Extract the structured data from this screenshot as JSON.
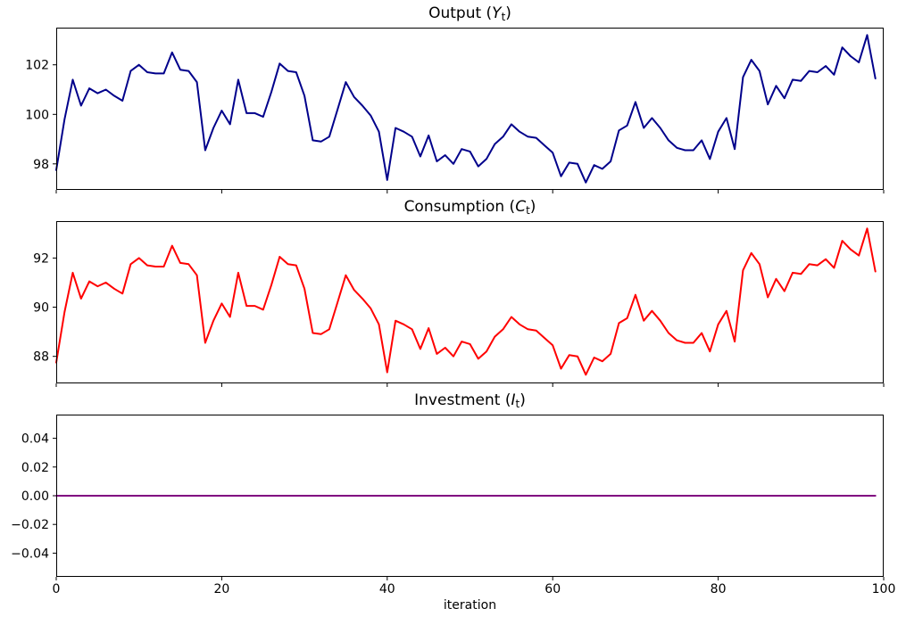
{
  "figure": {
    "background": "#ffffff",
    "text_color": "#000000",
    "xlabel": "iteration"
  },
  "chart_data": [
    {
      "name": "output",
      "type": "line",
      "title": {
        "prefix": "Output (",
        "var": "Y",
        "sub": "t",
        "suffix": ")"
      },
      "color": "#00008b",
      "line_width": 2,
      "x_start": 0,
      "x_step": 1,
      "xlim": [
        0,
        100
      ],
      "ylim": [
        96.95,
        103.5
      ],
      "xticks": [
        0,
        20,
        40,
        60,
        80,
        100
      ],
      "xtick_labels": [
        "0",
        "20",
        "40",
        "60",
        "80",
        "100"
      ],
      "show_xtick_labels": false,
      "yticks": [
        98,
        100,
        102
      ],
      "ytick_labels": [
        "98",
        "100",
        "102"
      ],
      "grid": false,
      "values": [
        97.75,
        99.8,
        101.4,
        100.35,
        101.05,
        100.85,
        101.0,
        100.75,
        100.55,
        101.75,
        102.0,
        101.7,
        101.65,
        101.65,
        102.5,
        101.8,
        101.75,
        101.3,
        98.55,
        99.45,
        100.15,
        99.6,
        101.4,
        100.05,
        100.05,
        99.9,
        100.9,
        102.05,
        101.75,
        101.7,
        100.75,
        98.95,
        98.9,
        99.1,
        100.2,
        101.3,
        100.7,
        100.35,
        99.95,
        99.3,
        97.35,
        99.45,
        99.3,
        99.1,
        98.3,
        99.15,
        98.1,
        98.35,
        98.0,
        98.6,
        98.5,
        97.9,
        98.2,
        98.8,
        99.1,
        99.6,
        99.3,
        99.1,
        99.05,
        98.75,
        98.45,
        97.5,
        98.05,
        98.0,
        97.25,
        97.95,
        97.8,
        98.1,
        99.35,
        99.55,
        100.5,
        99.45,
        99.85,
        99.45,
        98.95,
        98.65,
        98.55,
        98.55,
        98.95,
        98.2,
        99.3,
        99.85,
        98.6,
        101.5,
        102.2,
        101.75,
        100.4,
        101.15,
        100.65,
        101.4,
        101.35,
        101.75,
        101.7,
        101.95,
        101.6,
        102.7,
        102.35,
        102.1,
        103.2,
        101.45
      ]
    },
    {
      "name": "consumption",
      "type": "line",
      "title": {
        "prefix": "Consumption (",
        "var": "C",
        "sub": "t",
        "suffix": ")"
      },
      "color": "#ff0000",
      "line_width": 2,
      "x_start": 0,
      "x_step": 1,
      "xlim": [
        0,
        100
      ],
      "ylim": [
        86.9,
        93.5
      ],
      "xticks": [
        0,
        20,
        40,
        60,
        80,
        100
      ],
      "xtick_labels": [
        "0",
        "20",
        "40",
        "60",
        "80",
        "100"
      ],
      "show_xtick_labels": false,
      "yticks": [
        88,
        90,
        92
      ],
      "ytick_labels": [
        "88",
        "90",
        "92"
      ],
      "grid": false,
      "values": [
        87.75,
        89.8,
        91.4,
        90.35,
        91.05,
        90.85,
        91.0,
        90.75,
        90.55,
        91.75,
        92.0,
        91.7,
        91.65,
        91.65,
        92.5,
        91.8,
        91.75,
        91.3,
        88.55,
        89.45,
        90.15,
        89.6,
        91.4,
        90.05,
        90.05,
        89.9,
        90.9,
        92.05,
        91.75,
        91.7,
        90.75,
        88.95,
        88.9,
        89.1,
        90.2,
        91.3,
        90.7,
        90.35,
        89.95,
        89.3,
        87.35,
        89.45,
        89.3,
        89.1,
        88.3,
        89.15,
        88.1,
        88.35,
        88.0,
        88.6,
        88.5,
        87.9,
        88.2,
        88.8,
        89.1,
        89.6,
        89.3,
        89.1,
        89.05,
        88.75,
        88.45,
        87.5,
        88.05,
        88.0,
        87.25,
        87.95,
        87.8,
        88.1,
        89.35,
        89.55,
        90.5,
        89.45,
        89.85,
        89.45,
        88.95,
        88.65,
        88.55,
        88.55,
        88.95,
        88.2,
        89.3,
        89.85,
        88.6,
        91.5,
        92.2,
        91.75,
        90.4,
        91.15,
        90.65,
        91.4,
        91.35,
        91.75,
        91.7,
        91.95,
        91.6,
        92.7,
        92.35,
        92.1,
        93.2,
        91.45
      ]
    },
    {
      "name": "investment",
      "type": "line",
      "title": {
        "prefix": "Investment (",
        "var": "I",
        "sub": "t",
        "suffix": ")"
      },
      "color": "#800080",
      "line_width": 2,
      "x_start": 0,
      "x_step": 1,
      "xlim": [
        0,
        100
      ],
      "ylim": [
        -0.0565,
        0.0565
      ],
      "xticks": [
        0,
        20,
        40,
        60,
        80,
        100
      ],
      "xtick_labels": [
        "0",
        "20",
        "40",
        "60",
        "80",
        "100"
      ],
      "show_xtick_labels": true,
      "yticks": [
        -0.04,
        -0.02,
        0.0,
        0.02,
        0.04
      ],
      "ytick_labels": [
        "−0.04",
        "−0.02",
        "0.00",
        "0.02",
        "0.04"
      ],
      "grid": false,
      "values": [
        0.0,
        0.0,
        0.0,
        0.0,
        0.0,
        0.0,
        0.0,
        0.0,
        0.0,
        0.0,
        0.0,
        0.0,
        0.0,
        0.0,
        0.0,
        0.0,
        0.0,
        0.0,
        0.0,
        0.0,
        0.0,
        0.0,
        0.0,
        0.0,
        0.0,
        0.0,
        0.0,
        0.0,
        0.0,
        0.0,
        0.0,
        0.0,
        0.0,
        0.0,
        0.0,
        0.0,
        0.0,
        0.0,
        0.0,
        0.0,
        0.0,
        0.0,
        0.0,
        0.0,
        0.0,
        0.0,
        0.0,
        0.0,
        0.0,
        0.0,
        0.0,
        0.0,
        0.0,
        0.0,
        0.0,
        0.0,
        0.0,
        0.0,
        0.0,
        0.0,
        0.0,
        0.0,
        0.0,
        0.0,
        0.0,
        0.0,
        0.0,
        0.0,
        0.0,
        0.0,
        0.0,
        0.0,
        0.0,
        0.0,
        0.0,
        0.0,
        0.0,
        0.0,
        0.0,
        0.0,
        0.0,
        0.0,
        0.0,
        0.0,
        0.0,
        0.0,
        0.0,
        0.0,
        0.0,
        0.0,
        0.0,
        0.0,
        0.0,
        0.0,
        0.0,
        0.0,
        0.0,
        0.0,
        0.0,
        0.0
      ]
    }
  ]
}
